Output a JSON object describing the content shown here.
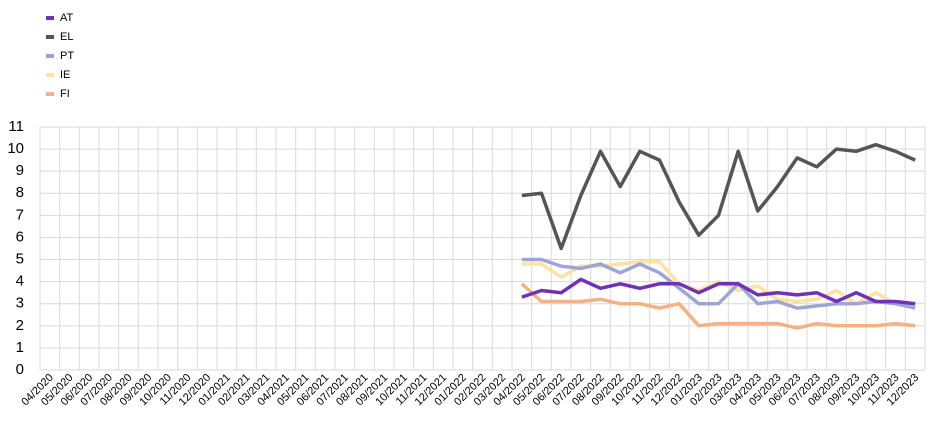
{
  "chart_data": {
    "type": "line",
    "categories": [
      "04/2020",
      "05/2020",
      "06/2020",
      "07/2020",
      "08/2020",
      "09/2020",
      "10/2020",
      "11/2020",
      "12/2020",
      "01/2021",
      "02/2021",
      "03/2021",
      "04/2021",
      "05/2021",
      "06/2021",
      "07/2021",
      "08/2021",
      "09/2021",
      "10/2021",
      "11/2021",
      "12/2021",
      "01/2022",
      "02/2022",
      "03/2022",
      "04/2022",
      "05/2022",
      "06/2022",
      "07/2022",
      "08/2022",
      "09/2022",
      "10/2022",
      "11/2022",
      "12/2022",
      "01/2023",
      "02/2023",
      "03/2023",
      "04/2023",
      "05/2023",
      "06/2023",
      "07/2023",
      "08/2023",
      "09/2023",
      "10/2023",
      "11/2023",
      "12/2023"
    ],
    "series": [
      {
        "name": "AT",
        "color": "#7030b8",
        "values": [
          null,
          null,
          null,
          null,
          null,
          null,
          null,
          null,
          null,
          null,
          null,
          null,
          null,
          null,
          null,
          null,
          null,
          null,
          null,
          null,
          null,
          null,
          null,
          null,
          3.3,
          3.6,
          3.5,
          4.1,
          3.7,
          3.9,
          3.7,
          3.9,
          3.9,
          3.5,
          3.9,
          3.9,
          3.4,
          3.5,
          3.4,
          3.5,
          3.1,
          3.5,
          3.1,
          3.1,
          3.0
        ]
      },
      {
        "name": "EL",
        "color": "#555555",
        "values": [
          null,
          null,
          null,
          null,
          null,
          null,
          null,
          null,
          null,
          null,
          null,
          null,
          null,
          null,
          null,
          null,
          null,
          null,
          null,
          null,
          null,
          null,
          null,
          null,
          7.9,
          8.0,
          5.5,
          7.9,
          9.9,
          8.3,
          9.9,
          9.5,
          7.6,
          6.1,
          7.0,
          9.9,
          7.2,
          8.3,
          9.6,
          9.2,
          10.0,
          9.9,
          10.2,
          9.9,
          9.5
        ]
      },
      {
        "name": "PT",
        "color": "#9da5d6",
        "values": [
          null,
          null,
          null,
          null,
          null,
          null,
          null,
          null,
          null,
          null,
          null,
          null,
          null,
          null,
          null,
          null,
          null,
          null,
          null,
          null,
          null,
          null,
          null,
          null,
          5.0,
          5.0,
          4.7,
          4.6,
          4.8,
          4.4,
          4.8,
          4.4,
          3.7,
          3.0,
          3.0,
          3.9,
          3.0,
          3.1,
          2.8,
          2.9,
          3.0,
          3.0,
          3.1,
          3.0,
          2.8
        ]
      },
      {
        "name": "IE",
        "color": "#fde2a2",
        "values": [
          null,
          null,
          null,
          null,
          null,
          null,
          null,
          null,
          null,
          null,
          null,
          null,
          null,
          null,
          null,
          null,
          null,
          null,
          null,
          null,
          null,
          null,
          null,
          null,
          4.8,
          4.8,
          4.2,
          4.7,
          4.7,
          4.8,
          4.9,
          4.9,
          3.9,
          3.6,
          4.0,
          3.6,
          3.8,
          3.2,
          3.1,
          3.2,
          3.6,
          3.0,
          3.5,
          3.0,
          3.0
        ]
      },
      {
        "name": "FI",
        "color": "#f4b183",
        "values": [
          null,
          null,
          null,
          null,
          null,
          null,
          null,
          null,
          null,
          null,
          null,
          null,
          null,
          null,
          null,
          null,
          null,
          null,
          null,
          null,
          null,
          null,
          null,
          null,
          3.9,
          3.1,
          3.1,
          3.1,
          3.2,
          3.0,
          3.0,
          2.8,
          3.0,
          2.0,
          2.1,
          2.1,
          2.1,
          2.1,
          1.9,
          2.1,
          2.0,
          2.0,
          2.0,
          2.1,
          2.0
        ]
      }
    ],
    "ylim": [
      0,
      11
    ],
    "yticks": [
      0,
      1,
      2,
      3,
      4,
      5,
      6,
      7,
      8,
      9,
      10,
      11
    ],
    "grid": true,
    "legend": "top-left"
  }
}
